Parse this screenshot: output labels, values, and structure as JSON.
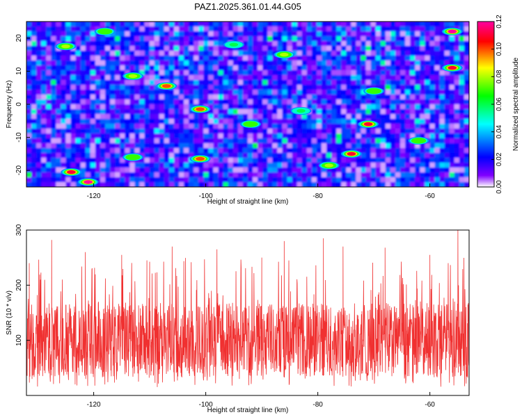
{
  "title": "PAZ1.2025.361.01.44.G05",
  "chart_data": [
    {
      "type": "heatmap",
      "title": "PAZ1.2025.361.01.44.G05",
      "xlabel": "Height of straight line (km)",
      "ylabel": "Frequency (Hz)",
      "xlim": [
        -132,
        -53
      ],
      "ylim": [
        -25,
        25
      ],
      "xticks": [
        -120,
        -100,
        -80,
        -60
      ],
      "yticks": [
        20,
        10,
        0,
        -10,
        -20
      ],
      "colorbar": {
        "label": "Normalized spectral amplitude",
        "range": [
          0,
          0.12
        ],
        "ticks": [
          0.0,
          0.02,
          0.04,
          0.06,
          0.08,
          0.1,
          0.12
        ],
        "tick_labels": [
          "0.00",
          "0.02",
          "0.04",
          "0.06",
          "0.08",
          "0.10",
          "0.12"
        ],
        "colormap": [
          "#ffffff",
          "#8000ff",
          "#0000ff",
          "#00ffff",
          "#00ff00",
          "#ffff00",
          "#ff0000",
          "#ff00a0"
        ]
      },
      "description_level": "mostly 0.01-0.04 (purple/blue) with scattered peaks up to ~0.12",
      "peaks": [
        {
          "x": -121,
          "y": -23.5,
          "v": 0.12
        },
        {
          "x": -124,
          "y": -20.5,
          "v": 0.11
        },
        {
          "x": -101,
          "y": -16.5,
          "v": 0.1
        },
        {
          "x": -74,
          "y": -15,
          "v": 0.11
        },
        {
          "x": -71,
          "y": -6,
          "v": 0.11
        },
        {
          "x": -56,
          "y": 11,
          "v": 0.11
        },
        {
          "x": -56,
          "y": 22,
          "v": 0.12
        },
        {
          "x": -101,
          "y": -1.5,
          "v": 0.1
        },
        {
          "x": -107,
          "y": 5.5,
          "v": 0.1
        },
        {
          "x": -125,
          "y": 17.5,
          "v": 0.08
        },
        {
          "x": -113,
          "y": 8.5,
          "v": 0.08
        },
        {
          "x": -62,
          "y": -11,
          "v": 0.07
        },
        {
          "x": -78,
          "y": -18.5,
          "v": 0.08
        },
        {
          "x": -113,
          "y": -16,
          "v": 0.07
        },
        {
          "x": -92,
          "y": -6,
          "v": 0.07
        },
        {
          "x": -86,
          "y": 15,
          "v": 0.08
        },
        {
          "x": -118,
          "y": 22,
          "v": 0.07
        },
        {
          "x": -70,
          "y": 4,
          "v": 0.07
        },
        {
          "x": -95,
          "y": 18,
          "v": 0.06
        },
        {
          "x": -83,
          "y": -2,
          "v": 0.06
        }
      ]
    },
    {
      "type": "line",
      "title": "",
      "xlabel": "Height of straight line (km)",
      "ylabel": "SNR (10 * v/v)",
      "xlim": [
        -132,
        -53
      ],
      "ylim": [
        0,
        300
      ],
      "xticks": [
        -120,
        -100,
        -80,
        -60
      ],
      "yticks": [
        100,
        200,
        300
      ],
      "series": [
        {
          "name": "SNR",
          "color": "#f03030",
          "baseline": 100,
          "typical_range": [
            40,
            220
          ],
          "max": 300,
          "points": [
            {
              "x": -132.0,
              "y": 70
            },
            {
              "x": -131.5,
              "y": 240
            },
            {
              "x": -131.0,
              "y": 30
            },
            {
              "x": -129.5,
              "y": 210
            },
            {
              "x": -128.0,
              "y": 40
            },
            {
              "x": -127.5,
              "y": 282
            },
            {
              "x": -125.0,
              "y": 50
            },
            {
              "x": -121.5,
              "y": 260
            },
            {
              "x": -118.0,
              "y": 20
            },
            {
              "x": -115.0,
              "y": 255
            },
            {
              "x": -112.0,
              "y": 25
            },
            {
              "x": -110.5,
              "y": 245
            },
            {
              "x": -106.0,
              "y": 270
            },
            {
              "x": -103.0,
              "y": 40
            },
            {
              "x": -98.0,
              "y": 265
            },
            {
              "x": -94.0,
              "y": 30
            },
            {
              "x": -90.0,
              "y": 250
            },
            {
              "x": -86.0,
              "y": 280
            },
            {
              "x": -82.0,
              "y": 35
            },
            {
              "x": -79.0,
              "y": 285
            },
            {
              "x": -75.5,
              "y": 270
            },
            {
              "x": -72.0,
              "y": 40
            },
            {
              "x": -68.0,
              "y": 268
            },
            {
              "x": -64.0,
              "y": 35
            },
            {
              "x": -60.0,
              "y": 255
            },
            {
              "x": -56.5,
              "y": 40
            },
            {
              "x": -55.0,
              "y": 300
            },
            {
              "x": -53.0,
              "y": 120
            }
          ]
        }
      ]
    }
  ]
}
